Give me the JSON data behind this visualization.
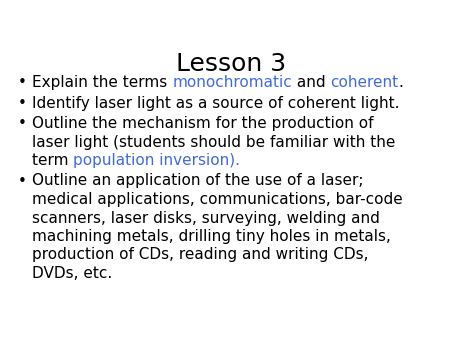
{
  "title": "Lesson 3",
  "title_fontsize": 18,
  "title_color": "#000000",
  "background_color": "#ffffff",
  "black": "#000000",
  "blue": "#4169e1",
  "bullet_fontsize": 11,
  "bullet_symbol": "•",
  "fig_width": 4.5,
  "fig_height": 3.38,
  "dpi": 100,
  "bullets": [
    {
      "lines": [
        {
          "segments": [
            {
              "text": "Explain the terms ",
              "color": "#000000"
            },
            {
              "text": "monochromatic",
              "color": "#4169e1"
            },
            {
              "text": " and ",
              "color": "#000000"
            },
            {
              "text": "coherent",
              "color": "#4169e1"
            },
            {
              "text": ".",
              "color": "#000000"
            }
          ]
        }
      ]
    },
    {
      "lines": [
        {
          "segments": [
            {
              "text": "Identify laser light as a source of coherent light.",
              "color": "#000000"
            }
          ]
        }
      ]
    },
    {
      "lines": [
        {
          "segments": [
            {
              "text": "Outline the mechanism for the production of",
              "color": "#000000"
            }
          ]
        },
        {
          "segments": [
            {
              "text": "laser light (students should be familiar with the",
              "color": "#000000"
            }
          ]
        },
        {
          "segments": [
            {
              "text": "term ",
              "color": "#000000"
            },
            {
              "text": "population inversion).",
              "color": "#4169e1"
            }
          ]
        }
      ]
    },
    {
      "lines": [
        {
          "segments": [
            {
              "text": "Outline an application of the use of a laser;",
              "color": "#000000"
            }
          ]
        },
        {
          "segments": [
            {
              "text": "medical applications, communications, bar-code",
              "color": "#000000"
            }
          ]
        },
        {
          "segments": [
            {
              "text": "scanners, laser disks, surveying, welding and",
              "color": "#000000"
            }
          ]
        },
        {
          "segments": [
            {
              "text": "machining metals, drilling tiny holes in metals,",
              "color": "#000000"
            }
          ]
        },
        {
          "segments": [
            {
              "text": "production of CDs, reading and writing CDs,",
              "color": "#000000"
            }
          ]
        },
        {
          "segments": [
            {
              "text": "DVDs, etc.",
              "color": "#000000"
            }
          ]
        }
      ]
    }
  ]
}
